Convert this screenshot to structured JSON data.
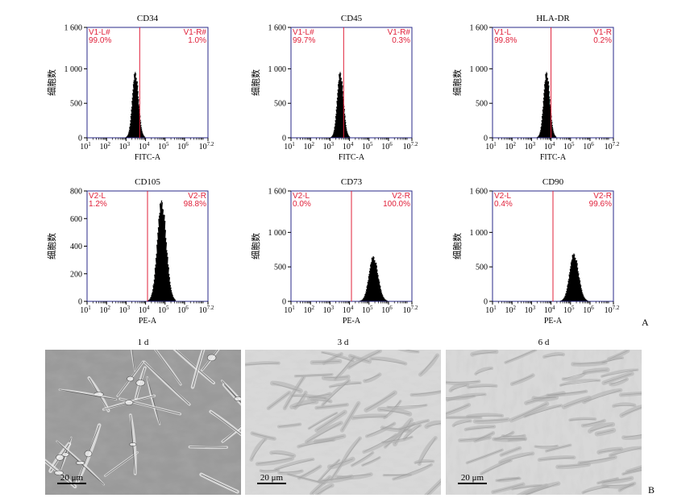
{
  "panel_labels": {
    "a": "A",
    "b": "B"
  },
  "y_axis_label": "细胞数",
  "histogram_color": "#000000",
  "frame_color": "#2a2a8a",
  "gate_color": "#e0203a",
  "chart_data": [
    {
      "type": "histogram",
      "title": "CD34",
      "xlabel": "FITC-A",
      "ylabel": "细胞数",
      "ylim": [
        0,
        1600
      ],
      "yticks": [
        0,
        500,
        1000,
        1600
      ],
      "ytick_labels": [
        "0",
        "500",
        "1 000",
        "1 600"
      ],
      "x_log_range": [
        1,
        7.2
      ],
      "xtick_exps": [
        "1",
        "2",
        "3",
        "4",
        "5",
        "6",
        "7.2"
      ],
      "gate_x": 3.7,
      "gate_left_label": "V1-L#",
      "gate_left_value": "99.0%",
      "gate_right_label": "V1-R#",
      "gate_right_value": "1.0%",
      "peak_center": 3.45,
      "peak_width": 0.15,
      "peak_height": 950
    },
    {
      "type": "histogram",
      "title": "CD45",
      "xlabel": "FITC-A",
      "ylabel": "细胞数",
      "ylim": [
        0,
        1600
      ],
      "yticks": [
        0,
        500,
        1000,
        1600
      ],
      "ytick_labels": [
        "0",
        "500",
        "1 000",
        "1 600"
      ],
      "x_log_range": [
        1,
        7.2
      ],
      "xtick_exps": [
        "1",
        "2",
        "3",
        "4",
        "5",
        "6",
        "7.2"
      ],
      "gate_x": 3.7,
      "gate_left_label": "V1-L#",
      "gate_left_value": "99.7%",
      "gate_right_label": "V1-R#",
      "gate_right_value": "0.3%",
      "peak_center": 3.5,
      "peak_width": 0.15,
      "peak_height": 950
    },
    {
      "type": "histogram",
      "title": "HLA-DR",
      "xlabel": "FITC-A",
      "ylabel": "细胞数",
      "ylim": [
        0,
        1600
      ],
      "yticks": [
        0,
        500,
        1000,
        1600
      ],
      "ytick_labels": [
        "0",
        "500",
        "1 000",
        "1 600"
      ],
      "x_log_range": [
        1,
        7.2
      ],
      "xtick_exps": [
        "1",
        "2",
        "3",
        "4",
        "5",
        "6",
        "7.2"
      ],
      "gate_x": 4.0,
      "gate_left_label": "V1-L",
      "gate_left_value": "99.8%",
      "gate_right_label": "V1-R",
      "gate_right_value": "0.2%",
      "peak_center": 3.75,
      "peak_width": 0.15,
      "peak_height": 950
    },
    {
      "type": "histogram",
      "title": "CD105",
      "xlabel": "PE-A",
      "ylabel": "细胞数",
      "ylim": [
        0,
        800
      ],
      "yticks": [
        0,
        200,
        400,
        600,
        800
      ],
      "ytick_labels": [
        "0",
        "200",
        "400",
        "600",
        "800"
      ],
      "x_log_range": [
        1,
        7.2
      ],
      "xtick_exps": [
        "1",
        "2",
        "3",
        "4",
        "5",
        "6",
        "7.2"
      ],
      "gate_x": 4.1,
      "gate_left_label": "V2-L",
      "gate_left_value": "1.2%",
      "gate_right_label": "V2-R",
      "gate_right_value": "98.8%",
      "peak_center": 4.8,
      "peak_width": 0.22,
      "peak_height": 730
    },
    {
      "type": "histogram",
      "title": "CD73",
      "xlabel": "PE-A",
      "ylabel": "细胞数",
      "ylim": [
        0,
        1600
      ],
      "yticks": [
        0,
        500,
        1000,
        1600
      ],
      "ytick_labels": [
        "0",
        "500",
        "1 000",
        "1 600"
      ],
      "x_log_range": [
        1,
        7.2
      ],
      "xtick_exps": [
        "1",
        "2",
        "3",
        "4",
        "5",
        "6",
        "7.2"
      ],
      "gate_x": 4.1,
      "gate_left_label": "V2-L",
      "gate_left_value": "0.0%",
      "gate_right_label": "V2-R",
      "gate_right_value": "100.0%",
      "peak_center": 5.2,
      "peak_width": 0.22,
      "peak_height": 650
    },
    {
      "type": "histogram",
      "title": "CD90",
      "xlabel": "PE-A",
      "ylabel": "细胞数",
      "ylim": [
        0,
        1600
      ],
      "yticks": [
        0,
        500,
        1000,
        1600
      ],
      "ytick_labels": [
        "0",
        "500",
        "1 000",
        "1 600"
      ],
      "x_log_range": [
        1,
        7.2
      ],
      "xtick_exps": [
        "1",
        "2",
        "3",
        "4",
        "5",
        "6",
        "7.2"
      ],
      "gate_x": 4.1,
      "gate_left_label": "V2-L",
      "gate_left_value": "0.4%",
      "gate_right_label": "V2-R",
      "gate_right_value": "99.6%",
      "peak_center": 5.15,
      "peak_width": 0.22,
      "peak_height": 690
    }
  ],
  "micrographs": [
    {
      "label": "1 d",
      "scale_text": "20 μm",
      "tone": "dark"
    },
    {
      "label": "3 d",
      "scale_text": "20 μm",
      "tone": "light"
    },
    {
      "label": "6 d",
      "scale_text": "20 μm",
      "tone": "light"
    }
  ]
}
